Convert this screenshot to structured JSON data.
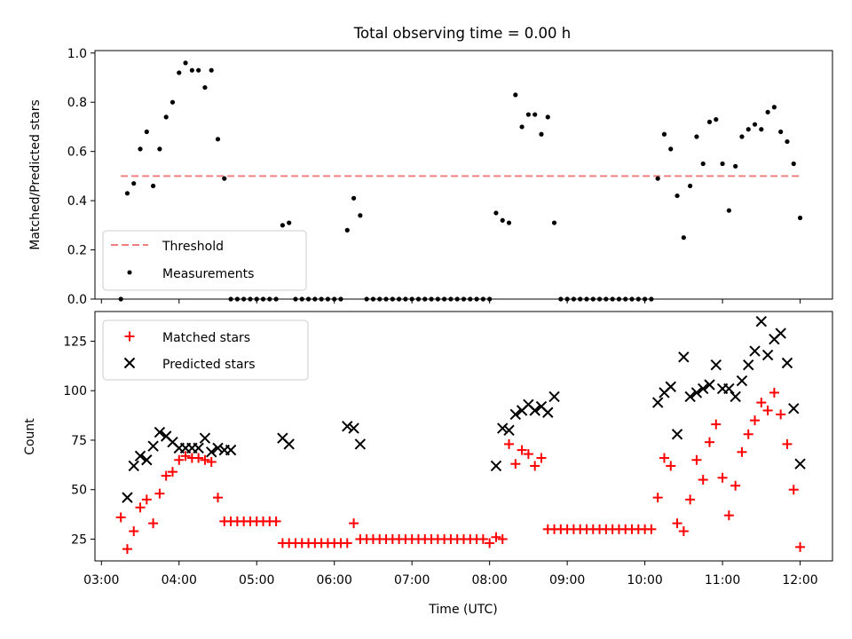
{
  "title": "Total observing time = 0.00 h",
  "chart_data": [
    {
      "type": "scatter",
      "ylabel": "Matched/Predicted stars",
      "ylim": [
        0,
        1.01
      ],
      "yticks": [
        "0.0",
        "0.2",
        "0.4",
        "0.6",
        "0.8",
        "1.0"
      ],
      "legend": {
        "placement": "lower-left",
        "entries": [
          "Threshold",
          "Measurements"
        ]
      },
      "threshold": {
        "name": "Threshold",
        "value": 0.5,
        "x_start": "03:15",
        "x_end": "12:00",
        "color": "#f08080"
      },
      "measurements": {
        "name": "Measurements",
        "color": "#000000",
        "x": [
          "03:15",
          "03:20",
          "03:25",
          "03:30",
          "03:35",
          "03:40",
          "03:45",
          "03:50",
          "03:55",
          "04:00",
          "04:05",
          "04:10",
          "04:15",
          "04:20",
          "04:25",
          "04:30",
          "04:35",
          "04:40",
          "04:45",
          "04:50",
          "04:55",
          "05:00",
          "05:05",
          "05:10",
          "05:15",
          "05:20",
          "05:25",
          "05:30",
          "05:35",
          "05:40",
          "05:45",
          "05:50",
          "05:55",
          "06:00",
          "06:05",
          "06:10",
          "06:15",
          "06:20",
          "06:25",
          "06:30",
          "06:35",
          "06:40",
          "06:45",
          "06:50",
          "06:55",
          "07:00",
          "07:05",
          "07:10",
          "07:15",
          "07:20",
          "07:25",
          "07:30",
          "07:35",
          "07:40",
          "07:45",
          "07:50",
          "07:55",
          "08:00",
          "08:05",
          "08:10",
          "08:15",
          "08:20",
          "08:25",
          "08:30",
          "08:35",
          "08:40",
          "08:45",
          "08:50",
          "08:55",
          "09:00",
          "09:05",
          "09:10",
          "09:15",
          "09:20",
          "09:25",
          "09:30",
          "09:35",
          "09:40",
          "09:45",
          "09:50",
          "09:55",
          "10:00",
          "10:05",
          "10:10",
          "10:15",
          "10:20",
          "10:25",
          "10:30",
          "10:35",
          "10:40",
          "10:45",
          "10:50",
          "10:55",
          "11:00",
          "11:05",
          "11:10",
          "11:15",
          "11:20",
          "11:25",
          "11:30",
          "11:35",
          "11:40",
          "11:45",
          "11:50",
          "11:55",
          "12:00"
        ],
        "y": [
          0.0,
          0.43,
          0.47,
          0.61,
          0.68,
          0.46,
          0.61,
          0.74,
          0.8,
          0.92,
          0.96,
          0.93,
          0.93,
          0.86,
          0.93,
          0.65,
          0.49,
          0.0,
          0.0,
          0.0,
          0.0,
          0.0,
          0.0,
          0.0,
          0.0,
          0.3,
          0.31,
          0.0,
          0.0,
          0.0,
          0.0,
          0.0,
          0.0,
          0.0,
          0.0,
          0.28,
          0.41,
          0.34,
          0.0,
          0.0,
          0.0,
          0.0,
          0.0,
          0.0,
          0.0,
          0.0,
          0.0,
          0.0,
          0.0,
          0.0,
          0.0,
          0.0,
          0.0,
          0.0,
          0.0,
          0.0,
          0.0,
          0.0,
          0.35,
          0.32,
          0.31,
          0.83,
          0.7,
          0.75,
          0.75,
          0.67,
          0.74,
          0.31,
          0.0,
          0.0,
          0.0,
          0.0,
          0.0,
          0.0,
          0.0,
          0.0,
          0.0,
          0.0,
          0.0,
          0.0,
          0.0,
          0.0,
          0.0,
          0.49,
          0.67,
          0.61,
          0.42,
          0.25,
          0.46,
          0.66,
          0.55,
          0.72,
          0.73,
          0.55,
          0.36,
          0.54,
          0.66,
          0.69,
          0.71,
          0.69,
          0.76,
          0.78,
          0.68,
          0.64,
          0.55,
          0.33
        ]
      }
    },
    {
      "type": "scatter",
      "xlabel": "Time (UTC)",
      "ylabel": "Count",
      "ylim": [
        14,
        140
      ],
      "yticks": [
        "25",
        "50",
        "75",
        "100",
        "125"
      ],
      "xlim": [
        "02:55",
        "12:25"
      ],
      "xticks": [
        "03:00",
        "04:00",
        "05:00",
        "06:00",
        "07:00",
        "08:00",
        "09:00",
        "10:00",
        "11:00",
        "12:00"
      ],
      "legend": {
        "placement": "upper-left",
        "entries": [
          "Matched stars",
          "Predicted stars"
        ]
      },
      "series": [
        {
          "name": "Matched stars",
          "marker": "+",
          "color": "#ff0000",
          "x": [
            "03:15",
            "03:20",
            "03:25",
            "03:30",
            "03:35",
            "03:40",
            "03:45",
            "03:50",
            "03:55",
            "04:00",
            "04:05",
            "04:10",
            "04:15",
            "04:20",
            "04:25",
            "04:30",
            "04:35",
            "04:40",
            "04:45",
            "04:50",
            "04:55",
            "05:00",
            "05:05",
            "05:10",
            "05:15",
            "05:20",
            "05:25",
            "05:30",
            "05:35",
            "05:40",
            "05:45",
            "05:50",
            "05:55",
            "06:00",
            "06:05",
            "06:10",
            "06:15",
            "06:20",
            "06:25",
            "06:30",
            "06:35",
            "06:40",
            "06:45",
            "06:50",
            "06:55",
            "07:00",
            "07:05",
            "07:10",
            "07:15",
            "07:20",
            "07:25",
            "07:30",
            "07:35",
            "07:40",
            "07:45",
            "07:50",
            "07:55",
            "08:00",
            "08:05",
            "08:10",
            "08:15",
            "08:20",
            "08:25",
            "08:30",
            "08:35",
            "08:40",
            "08:45",
            "08:50",
            "08:55",
            "09:00",
            "09:05",
            "09:10",
            "09:15",
            "09:20",
            "09:25",
            "09:30",
            "09:35",
            "09:40",
            "09:45",
            "09:50",
            "09:55",
            "10:00",
            "10:05",
            "10:10",
            "10:15",
            "10:20",
            "10:25",
            "10:30",
            "10:35",
            "10:40",
            "10:45",
            "10:50",
            "10:55",
            "11:00",
            "11:05",
            "11:10",
            "11:15",
            "11:20",
            "11:25",
            "11:30",
            "11:35",
            "11:40",
            "11:45",
            "11:50",
            "11:55",
            "12:00"
          ],
          "y": [
            36,
            20,
            29,
            41,
            45,
            33,
            48,
            57,
            59,
            65,
            67,
            66,
            66,
            65,
            64,
            46,
            34,
            34,
            34,
            34,
            34,
            34,
            34,
            34,
            34,
            23,
            23,
            23,
            23,
            23,
            23,
            23,
            23,
            23,
            23,
            23,
            33,
            25,
            25,
            25,
            25,
            25,
            25,
            25,
            25,
            25,
            25,
            25,
            25,
            25,
            25,
            25,
            25,
            25,
            25,
            25,
            25,
            23,
            26,
            25,
            73,
            63,
            70,
            68,
            62,
            66,
            30,
            30,
            30,
            30,
            30,
            30,
            30,
            30,
            30,
            30,
            30,
            30,
            30,
            30,
            30,
            30,
            30,
            46,
            66,
            62,
            33,
            29,
            45,
            65,
            55,
            74,
            83,
            56,
            37,
            52,
            69,
            78,
            85,
            94,
            90,
            99,
            88,
            73,
            50,
            21
          ],
          "x2": [
            "05:55",
            "06:10",
            "06:20"
          ],
          "y2_note": "",
          "extra_x": [
            "05:55",
            "06:05",
            "06:10"
          ],
          "extra_y": [
            23,
            23,
            23
          ]
        },
        {
          "name": "Predicted stars",
          "marker": "x",
          "color": "#000000",
          "x": [
            "03:20",
            "03:25",
            "03:30",
            "03:35",
            "03:40",
            "03:45",
            "03:50",
            "03:55",
            "04:00",
            "04:05",
            "04:10",
            "04:15",
            "04:20",
            "04:25",
            "04:30",
            "04:35",
            "04:40",
            "05:20",
            "05:25",
            "06:10",
            "06:15",
            "06:20",
            "08:05",
            "08:10",
            "08:15",
            "08:20",
            "08:25",
            "08:30",
            "08:35",
            "08:40",
            "08:45",
            "08:50",
            "10:10",
            "10:15",
            "10:20",
            "10:25",
            "10:30",
            "10:35",
            "10:40",
            "10:45",
            "10:50",
            "10:55",
            "11:00",
            "11:05",
            "11:10",
            "11:15",
            "11:20",
            "11:25",
            "11:30",
            "11:35",
            "11:40",
            "11:45",
            "11:50",
            "11:55",
            "12:00"
          ],
          "y": [
            46,
            62,
            67,
            65,
            72,
            79,
            77,
            74,
            71,
            71,
            71,
            71,
            76,
            69,
            71,
            70,
            70,
            76,
            73,
            82,
            81,
            73,
            62,
            81,
            80,
            88,
            90,
            93,
            90,
            92,
            89,
            97,
            94,
            99,
            102,
            78,
            117,
            97,
            99,
            101,
            103,
            113,
            101,
            101,
            97,
            105,
            113,
            120,
            135,
            118,
            126,
            129,
            114,
            91,
            63
          ]
        }
      ]
    }
  ]
}
